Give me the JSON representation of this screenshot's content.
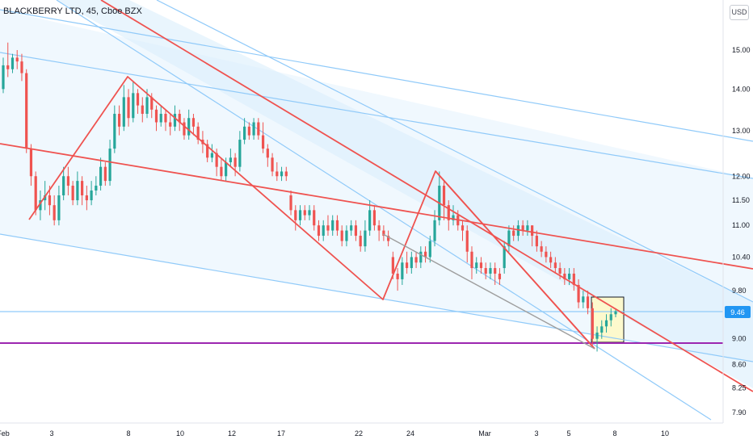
{
  "chart_data": {
    "type": "candlestick",
    "title": "BLACKBERRY LTD, 45, Cboe BZX",
    "currency": "USD",
    "y_axis": {
      "scale": "log",
      "ticks": [
        "15.00",
        "14.00",
        "13.00",
        "12.00",
        "11.50",
        "11.00",
        "10.40",
        "9.80",
        "9.00",
        "8.60",
        "8.25",
        "7.90"
      ]
    },
    "x_axis": {
      "ticks": [
        "Feb",
        "3",
        "8",
        "10",
        "12",
        "17",
        "22",
        "24",
        "Mar",
        "3",
        "5",
        "8",
        "10"
      ]
    },
    "last_price": "9.46",
    "horizontal_support": 8.95,
    "colors": {
      "up": "#26a69a",
      "down": "#ef5350",
      "channel": "#90caf9",
      "fill": "#e3f2fd",
      "trend": "#ef5350",
      "support": "#9c27b0",
      "price_tag": "#2196f3"
    },
    "candles": [
      [
        14.0,
        14.6,
        14.8,
        13.9
      ],
      [
        14.6,
        14.5,
        15.2,
        14.3
      ],
      [
        14.5,
        14.8,
        14.9,
        14.4
      ],
      [
        14.8,
        14.7,
        15.0,
        14.5
      ],
      [
        14.7,
        14.4,
        14.9,
        14.2
      ],
      [
        14.4,
        12.6,
        14.5,
        12.5
      ],
      [
        12.6,
        12.0,
        12.7,
        11.8
      ],
      [
        12.0,
        11.3,
        12.1,
        11.2
      ],
      [
        11.3,
        11.5,
        11.7,
        11.1
      ],
      [
        11.5,
        11.6,
        11.9,
        11.3
      ],
      [
        11.6,
        11.4,
        11.8,
        11.2
      ],
      [
        11.4,
        11.1,
        11.6,
        11.0
      ],
      [
        11.1,
        11.6,
        11.8,
        11.0
      ],
      [
        11.6,
        12.0,
        12.2,
        11.5
      ],
      [
        12.0,
        11.8,
        12.2,
        11.6
      ],
      [
        11.8,
        11.5,
        11.9,
        11.4
      ],
      [
        11.5,
        11.9,
        12.1,
        11.4
      ],
      [
        11.9,
        11.6,
        12.0,
        11.4
      ],
      [
        11.6,
        11.5,
        11.8,
        11.3
      ],
      [
        11.5,
        11.7,
        11.9,
        11.4
      ],
      [
        11.7,
        11.8,
        12.0,
        11.6
      ],
      [
        11.8,
        12.2,
        12.4,
        11.7
      ],
      [
        12.2,
        11.9,
        12.3,
        11.8
      ],
      [
        11.9,
        12.6,
        12.8,
        11.8
      ],
      [
        12.6,
        13.4,
        13.6,
        12.5
      ],
      [
        13.4,
        13.1,
        13.6,
        12.9
      ],
      [
        13.1,
        13.8,
        14.1,
        13.0
      ],
      [
        13.8,
        13.3,
        14.0,
        13.1
      ],
      [
        13.3,
        13.9,
        14.2,
        13.2
      ],
      [
        13.9,
        13.6,
        14.0,
        13.4
      ],
      [
        13.6,
        13.4,
        13.8,
        13.2
      ],
      [
        13.4,
        13.8,
        14.0,
        13.3
      ],
      [
        13.8,
        13.5,
        13.9,
        13.3
      ],
      [
        13.5,
        13.2,
        13.6,
        13.0
      ],
      [
        13.2,
        13.4,
        13.6,
        13.1
      ],
      [
        13.4,
        13.2,
        13.5,
        13.0
      ],
      [
        13.2,
        13.1,
        13.4,
        12.9
      ],
      [
        13.1,
        13.4,
        13.6,
        13.0
      ],
      [
        13.4,
        13.2,
        13.5,
        13.0
      ],
      [
        13.2,
        12.9,
        13.3,
        12.8
      ],
      [
        12.9,
        13.3,
        13.5,
        12.8
      ],
      [
        13.3,
        13.1,
        13.4,
        12.9
      ],
      [
        13.1,
        12.8,
        13.2,
        12.7
      ],
      [
        12.8,
        12.7,
        13.0,
        12.5
      ],
      [
        12.7,
        12.4,
        12.8,
        12.3
      ],
      [
        12.4,
        12.5,
        12.7,
        12.3
      ],
      [
        12.5,
        12.2,
        12.6,
        12.0
      ],
      [
        12.2,
        12.0,
        12.4,
        11.9
      ],
      [
        12.0,
        12.3,
        12.4,
        11.9
      ],
      [
        12.3,
        12.4,
        12.6,
        12.2
      ],
      [
        12.4,
        12.2,
        12.5,
        12.0
      ],
      [
        12.2,
        12.8,
        13.0,
        12.1
      ],
      [
        12.8,
        13.1,
        13.3,
        12.7
      ],
      [
        13.1,
        12.9,
        13.2,
        12.8
      ],
      [
        12.9,
        13.2,
        13.3,
        12.8
      ],
      [
        13.2,
        12.9,
        13.3,
        12.8
      ],
      [
        12.9,
        12.6,
        13.2,
        12.5
      ],
      [
        12.6,
        12.4,
        12.7,
        12.2
      ],
      [
        12.4,
        12.1,
        12.5,
        12.0
      ],
      [
        12.1,
        12.0,
        12.3,
        11.9
      ],
      [
        12.0,
        12.1,
        12.2,
        11.9
      ],
      [
        12.1,
        12.0,
        12.2,
        11.9
      ],
      [
        11.6,
        11.3,
        11.7,
        11.2
      ],
      [
        11.3,
        11.1,
        11.4,
        10.9
      ],
      [
        11.1,
        11.3,
        11.4,
        11.0
      ],
      [
        11.3,
        11.2,
        11.4,
        11.1
      ],
      [
        11.2,
        11.3,
        11.4,
        11.1
      ],
      [
        11.3,
        11.0,
        11.4,
        10.9
      ],
      [
        11.0,
        10.8,
        11.1,
        10.7
      ],
      [
        10.8,
        11.0,
        11.1,
        10.7
      ],
      [
        11.0,
        10.9,
        11.2,
        10.8
      ],
      [
        10.9,
        11.1,
        11.2,
        10.8
      ],
      [
        11.1,
        10.9,
        11.2,
        10.8
      ],
      [
        10.9,
        10.7,
        11.0,
        10.6
      ],
      [
        10.7,
        10.9,
        11.0,
        10.6
      ],
      [
        10.9,
        11.0,
        11.1,
        10.8
      ],
      [
        11.0,
        10.8,
        11.1,
        10.7
      ],
      [
        10.8,
        10.6,
        10.9,
        10.5
      ],
      [
        10.6,
        10.9,
        11.1,
        10.5
      ],
      [
        10.9,
        11.3,
        11.5,
        10.8
      ],
      [
        11.3,
        11.0,
        11.4,
        10.9
      ],
      [
        11.0,
        10.9,
        11.1,
        10.7
      ],
      [
        10.9,
        10.8,
        11.0,
        10.7
      ],
      [
        10.8,
        10.7,
        10.9,
        10.6
      ],
      [
        10.4,
        10.1,
        10.5,
        10.0
      ],
      [
        10.1,
        10.0,
        10.2,
        9.8
      ],
      [
        10.0,
        10.3,
        10.4,
        9.9
      ],
      [
        10.3,
        10.2,
        10.5,
        10.1
      ],
      [
        10.2,
        10.4,
        10.5,
        10.1
      ],
      [
        10.4,
        10.3,
        10.5,
        10.2
      ],
      [
        10.3,
        10.5,
        10.6,
        10.2
      ],
      [
        10.5,
        10.4,
        10.6,
        10.3
      ],
      [
        10.4,
        10.7,
        10.8,
        10.3
      ],
      [
        10.7,
        11.1,
        11.3,
        10.6
      ],
      [
        11.1,
        11.8,
        12.1,
        11.0
      ],
      [
        11.8,
        11.4,
        11.9,
        11.1
      ],
      [
        11.4,
        11.1,
        11.5,
        10.9
      ],
      [
        11.1,
        11.2,
        11.4,
        11.0
      ],
      [
        11.2,
        11.0,
        11.3,
        10.9
      ],
      [
        11.0,
        10.9,
        11.1,
        10.7
      ],
      [
        10.9,
        10.5,
        11.0,
        10.3
      ],
      [
        10.5,
        10.2,
        10.6,
        10.0
      ],
      [
        10.2,
        10.3,
        10.4,
        10.1
      ],
      [
        10.3,
        10.2,
        10.4,
        10.1
      ],
      [
        10.2,
        10.1,
        10.3,
        10.0
      ],
      [
        10.1,
        10.2,
        10.3,
        10.0
      ],
      [
        10.2,
        10.1,
        10.3,
        9.9
      ],
      [
        10.1,
        10.0,
        10.2,
        9.9
      ],
      [
        10.2,
        10.6,
        10.7,
        10.1
      ],
      [
        10.6,
        10.9,
        11.0,
        10.5
      ],
      [
        10.9,
        10.8,
        11.0,
        10.7
      ],
      [
        10.8,
        11.0,
        11.1,
        10.7
      ],
      [
        11.0,
        10.9,
        11.1,
        10.8
      ],
      [
        10.9,
        11.0,
        11.1,
        10.8
      ],
      [
        11.0,
        10.8,
        11.0,
        10.6
      ],
      [
        10.8,
        10.6,
        10.9,
        10.5
      ],
      [
        10.6,
        10.5,
        10.7,
        10.4
      ],
      [
        10.5,
        10.4,
        10.6,
        10.3
      ],
      [
        10.4,
        10.3,
        10.5,
        10.2
      ],
      [
        10.3,
        10.2,
        10.4,
        10.1
      ],
      [
        10.2,
        10.1,
        10.3,
        10.0
      ],
      [
        10.1,
        10.0,
        10.2,
        9.9
      ],
      [
        10.0,
        10.1,
        10.2,
        9.9
      ],
      [
        10.1,
        9.9,
        10.2,
        9.8
      ],
      [
        9.9,
        9.6,
        10.0,
        9.5
      ],
      [
        9.6,
        9.7,
        9.8,
        9.5
      ],
      [
        9.7,
        9.5,
        9.8,
        9.4
      ],
      [
        9.5,
        9.0,
        9.6,
        8.9
      ],
      [
        9.0,
        9.1,
        9.2,
        8.8
      ],
      [
        9.1,
        9.2,
        9.3,
        9.0
      ],
      [
        9.2,
        9.3,
        9.4,
        9.1
      ],
      [
        9.3,
        9.4,
        9.5,
        9.2
      ],
      [
        9.4,
        9.45,
        9.5,
        9.35
      ]
    ]
  }
}
